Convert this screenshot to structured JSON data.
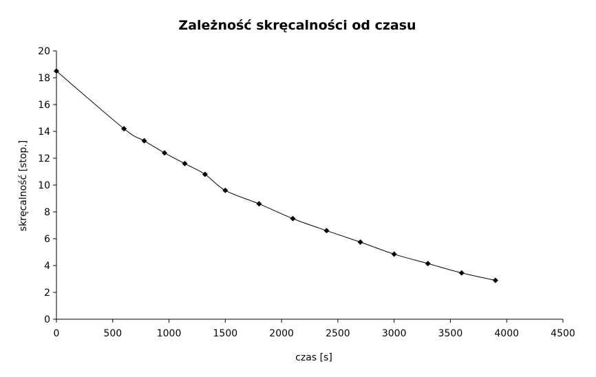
{
  "chart_data": {
    "type": "scatter",
    "title": "Zależność skręcalności od czasu",
    "xlabel": "czas [s]",
    "ylabel": "skręcalność [stop.]",
    "xlim": [
      0,
      4500
    ],
    "ylim": [
      0,
      20
    ],
    "xticks": [
      0,
      500,
      1000,
      1500,
      2000,
      2500,
      3000,
      3500,
      4000,
      4500
    ],
    "yticks": [
      0,
      2,
      4,
      6,
      8,
      10,
      12,
      14,
      16,
      18,
      20
    ],
    "grid": false,
    "legend": "none",
    "series": [
      {
        "marker": "diamond",
        "line": "smoothed",
        "color": "#000000",
        "x": [
          0,
          600,
          780,
          960,
          1140,
          1320,
          1500,
          1800,
          2100,
          2400,
          2700,
          3000,
          3300,
          3600,
          3900
        ],
        "y": [
          18.5,
          14.2,
          13.3,
          12.4,
          11.6,
          10.8,
          9.6,
          8.6,
          7.5,
          6.6,
          5.75,
          4.85,
          4.15,
          3.45,
          2.9
        ]
      }
    ]
  }
}
